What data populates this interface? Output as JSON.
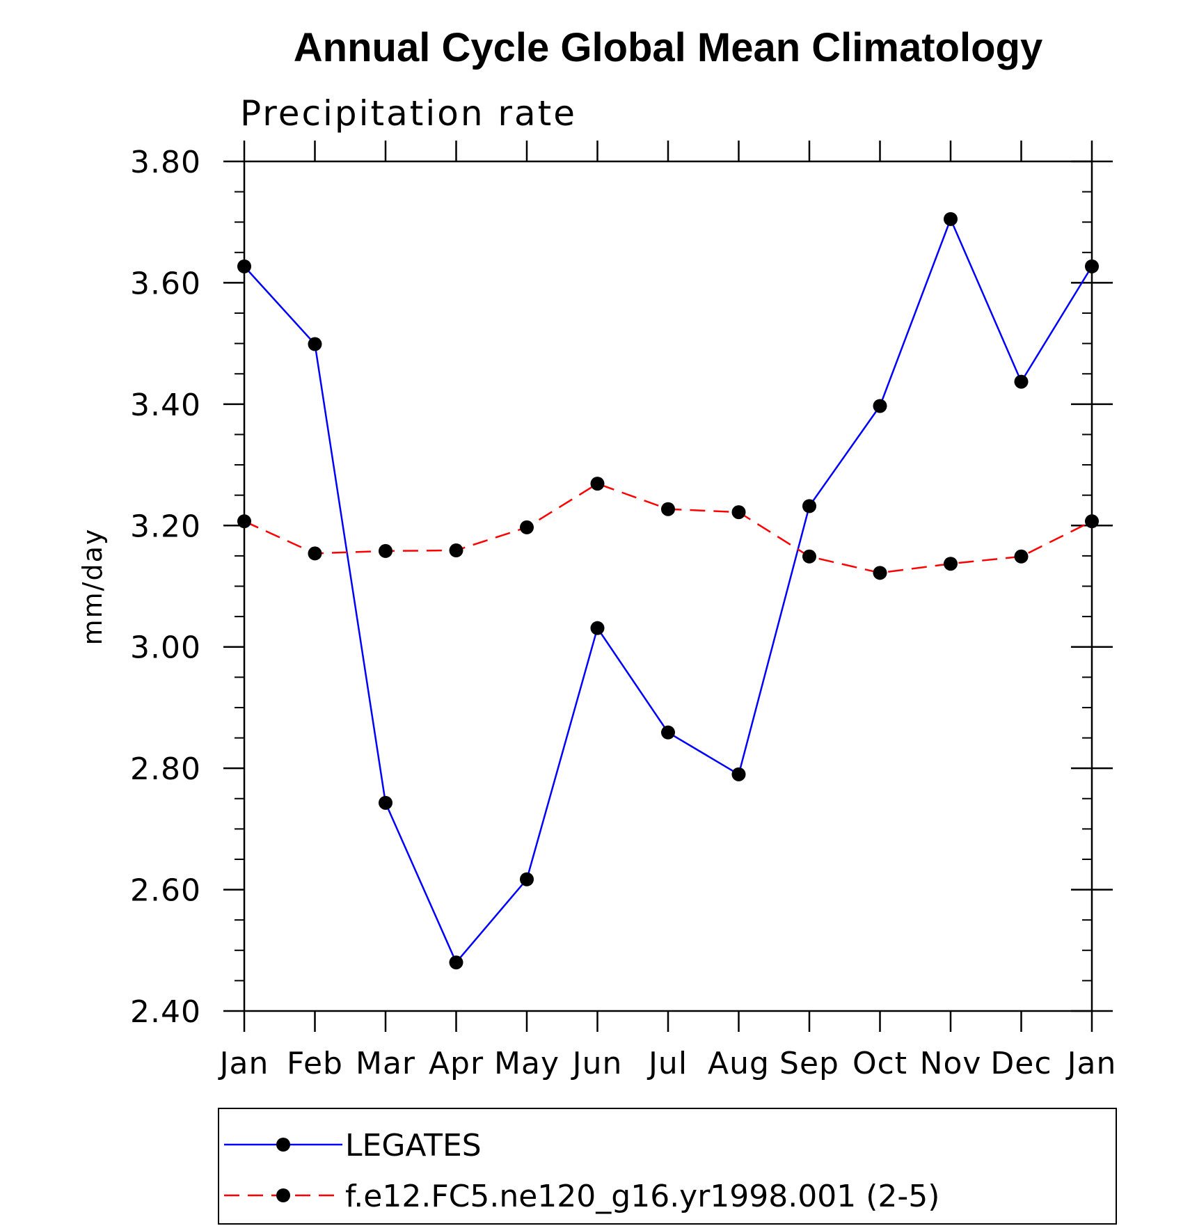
{
  "chart_data": {
    "type": "line",
    "title": "Annual Cycle Global Mean Climatology",
    "subtitle": "Precipitation rate",
    "ylabel": "mm/day",
    "xlabel": "",
    "ylim": [
      2.4,
      3.8
    ],
    "yticks": [
      "2.40",
      "2.60",
      "2.80",
      "3.00",
      "3.20",
      "3.40",
      "3.60",
      "3.80"
    ],
    "yticks_values": [
      2.4,
      2.6,
      2.8,
      3.0,
      3.2,
      3.4,
      3.6,
      3.8
    ],
    "y_minor_step": 0.05,
    "categories": [
      "Jan",
      "Feb",
      "Mar",
      "Apr",
      "May",
      "Jun",
      "Jul",
      "Aug",
      "Sep",
      "Oct",
      "Nov",
      "Dec",
      "Jan"
    ],
    "grid": false,
    "legend_placement": "bottom",
    "series": [
      {
        "name": "LEGATES",
        "color": "#0000ff",
        "line_style": "solid",
        "marker": "filled-circle",
        "values": [
          3.627,
          3.499,
          2.743,
          2.48,
          2.617,
          3.031,
          2.859,
          2.79,
          3.232,
          3.397,
          3.705,
          3.437,
          3.627
        ]
      },
      {
        "name": "f.e12.FC5.ne120_g16.yr1998.001 (2-5)",
        "color": "#ff0000",
        "line_style": "dashed",
        "marker": "filled-circle",
        "values": [
          3.207,
          3.154,
          3.158,
          3.159,
          3.197,
          3.269,
          3.227,
          3.222,
          3.149,
          3.122,
          3.137,
          3.149,
          3.207
        ]
      }
    ]
  }
}
